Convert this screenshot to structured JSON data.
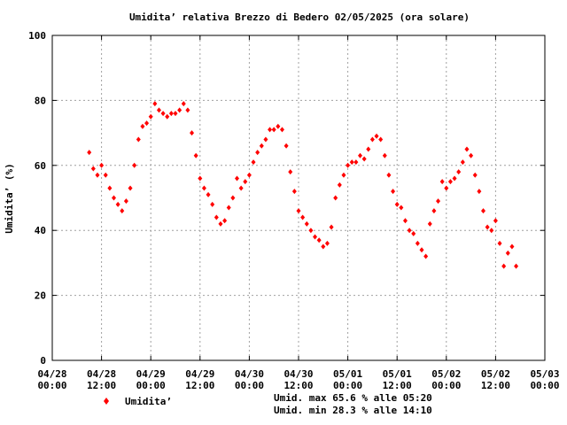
{
  "chart_data": {
    "type": "scatter",
    "title": "Umidita’ relativa Brezzo di Bedero 02/05/2025 (ora solare)",
    "xlabel": "",
    "ylabel": "Umidita’ (%)",
    "xlim": [
      "2025-04-28 00:00",
      "2025-05-03 00:00"
    ],
    "ylim": [
      0,
      100
    ],
    "grid": true,
    "y_ticks": [
      "0",
      "20",
      "40",
      "60",
      "80",
      "100"
    ],
    "x_ticks": [
      {
        "date": "04/28",
        "time": "00:00"
      },
      {
        "date": "04/28",
        "time": "12:00"
      },
      {
        "date": "04/29",
        "time": "00:00"
      },
      {
        "date": "04/29",
        "time": "12:00"
      },
      {
        "date": "04/30",
        "time": "00:00"
      },
      {
        "date": "04/30",
        "time": "12:00"
      },
      {
        "date": "05/01",
        "time": "00:00"
      },
      {
        "date": "05/01",
        "time": "12:00"
      },
      {
        "date": "05/02",
        "time": "00:00"
      },
      {
        "date": "05/02",
        "time": "12:00"
      },
      {
        "date": "05/03",
        "time": "00:00"
      }
    ],
    "legend_position": "bottom-left",
    "series": [
      {
        "name": "Umidita’",
        "color": "#ff0000",
        "marker": "diamond",
        "points": [
          [
            "2025-04-28 09:00",
            64
          ],
          [
            "2025-04-28 10:00",
            59
          ],
          [
            "2025-04-28 11:00",
            57
          ],
          [
            "2025-04-28 12:00",
            60
          ],
          [
            "2025-04-28 13:00",
            57
          ],
          [
            "2025-04-28 14:00",
            53
          ],
          [
            "2025-04-28 15:00",
            50
          ],
          [
            "2025-04-28 16:00",
            48
          ],
          [
            "2025-04-28 17:00",
            46
          ],
          [
            "2025-04-28 18:00",
            49
          ],
          [
            "2025-04-28 19:00",
            53
          ],
          [
            "2025-04-28 20:00",
            60
          ],
          [
            "2025-04-28 21:00",
            68
          ],
          [
            "2025-04-28 22:00",
            72
          ],
          [
            "2025-04-28 23:00",
            73
          ],
          [
            "2025-04-29 00:00",
            75
          ],
          [
            "2025-04-29 01:00",
            79
          ],
          [
            "2025-04-29 02:00",
            77
          ],
          [
            "2025-04-29 03:00",
            76
          ],
          [
            "2025-04-29 04:00",
            75
          ],
          [
            "2025-04-29 05:00",
            76
          ],
          [
            "2025-04-29 06:00",
            76
          ],
          [
            "2025-04-29 07:00",
            77
          ],
          [
            "2025-04-29 08:00",
            79
          ],
          [
            "2025-04-29 09:00",
            77
          ],
          [
            "2025-04-29 10:00",
            70
          ],
          [
            "2025-04-29 11:00",
            63
          ],
          [
            "2025-04-29 12:00",
            56
          ],
          [
            "2025-04-29 13:00",
            53
          ],
          [
            "2025-04-29 14:00",
            51
          ],
          [
            "2025-04-29 15:00",
            48
          ],
          [
            "2025-04-29 16:00",
            44
          ],
          [
            "2025-04-29 17:00",
            42
          ],
          [
            "2025-04-29 18:00",
            43
          ],
          [
            "2025-04-29 19:00",
            47
          ],
          [
            "2025-04-29 20:00",
            50
          ],
          [
            "2025-04-29 21:00",
            56
          ],
          [
            "2025-04-29 22:00",
            53
          ],
          [
            "2025-04-29 23:00",
            55
          ],
          [
            "2025-04-30 00:00",
            57
          ],
          [
            "2025-04-30 01:00",
            61
          ],
          [
            "2025-04-30 02:00",
            64
          ],
          [
            "2025-04-30 03:00",
            66
          ],
          [
            "2025-04-30 04:00",
            68
          ],
          [
            "2025-04-30 05:00",
            71
          ],
          [
            "2025-04-30 06:00",
            71
          ],
          [
            "2025-04-30 07:00",
            72
          ],
          [
            "2025-04-30 08:00",
            71
          ],
          [
            "2025-04-30 09:00",
            66
          ],
          [
            "2025-04-30 10:00",
            58
          ],
          [
            "2025-04-30 11:00",
            52
          ],
          [
            "2025-04-30 12:00",
            46
          ],
          [
            "2025-04-30 13:00",
            44
          ],
          [
            "2025-04-30 14:00",
            42
          ],
          [
            "2025-04-30 15:00",
            40
          ],
          [
            "2025-04-30 16:00",
            38
          ],
          [
            "2025-04-30 17:00",
            37
          ],
          [
            "2025-04-30 18:00",
            35
          ],
          [
            "2025-04-30 19:00",
            36
          ],
          [
            "2025-04-30 20:00",
            41
          ],
          [
            "2025-04-30 21:00",
            50
          ],
          [
            "2025-04-30 22:00",
            54
          ],
          [
            "2025-04-30 23:00",
            57
          ],
          [
            "2025-05-01 00:00",
            60
          ],
          [
            "2025-05-01 01:00",
            61
          ],
          [
            "2025-05-01 02:00",
            61
          ],
          [
            "2025-05-01 03:00",
            63
          ],
          [
            "2025-05-01 04:00",
            62
          ],
          [
            "2025-05-01 05:00",
            65
          ],
          [
            "2025-05-01 06:00",
            68
          ],
          [
            "2025-05-01 07:00",
            69
          ],
          [
            "2025-05-01 08:00",
            68
          ],
          [
            "2025-05-01 09:00",
            63
          ],
          [
            "2025-05-01 10:00",
            57
          ],
          [
            "2025-05-01 11:00",
            52
          ],
          [
            "2025-05-01 12:00",
            48
          ],
          [
            "2025-05-01 13:00",
            47
          ],
          [
            "2025-05-01 14:00",
            43
          ],
          [
            "2025-05-01 15:00",
            40
          ],
          [
            "2025-05-01 16:00",
            39
          ],
          [
            "2025-05-01 17:00",
            36
          ],
          [
            "2025-05-01 18:00",
            34
          ],
          [
            "2025-05-01 19:00",
            32
          ],
          [
            "2025-05-01 20:00",
            42
          ],
          [
            "2025-05-01 21:00",
            46
          ],
          [
            "2025-05-01 22:00",
            49
          ],
          [
            "2025-05-01 23:00",
            55
          ],
          [
            "2025-05-02 00:00",
            53
          ],
          [
            "2025-05-02 01:00",
            55
          ],
          [
            "2025-05-02 02:00",
            56
          ],
          [
            "2025-05-02 03:00",
            58
          ],
          [
            "2025-05-02 04:00",
            61
          ],
          [
            "2025-05-02 05:00",
            65
          ],
          [
            "2025-05-02 06:00",
            63
          ],
          [
            "2025-05-02 07:00",
            57
          ],
          [
            "2025-05-02 08:00",
            52
          ],
          [
            "2025-05-02 09:00",
            46
          ],
          [
            "2025-05-02 10:00",
            41
          ],
          [
            "2025-05-02 11:00",
            40
          ],
          [
            "2025-05-02 12:00",
            43
          ],
          [
            "2025-05-02 13:00",
            36
          ],
          [
            "2025-05-02 14:00",
            29
          ],
          [
            "2025-05-02 15:00",
            33
          ],
          [
            "2025-05-02 16:00",
            35
          ],
          [
            "2025-05-02 17:00",
            29
          ]
        ]
      }
    ],
    "stats": {
      "max_line": "Umid. max 65.6 % alle 05:20",
      "min_line": "Umid. min 28.3 % alle 14:10"
    }
  }
}
